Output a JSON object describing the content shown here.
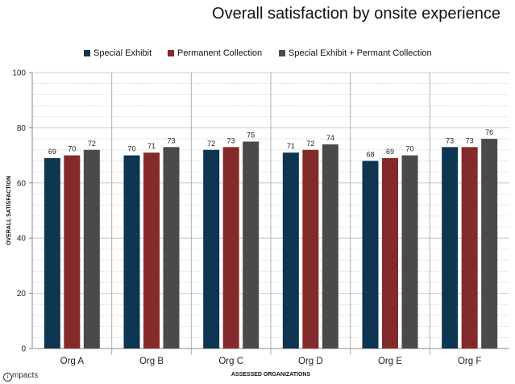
{
  "chart_data": {
    "type": "bar",
    "title": "Overall satisfaction by onsite experience",
    "xlabel": "ASSESSED ORGANIZATIONS",
    "ylabel": "OVERALL SATISFACTION",
    "ylim": [
      0,
      100
    ],
    "yticks": [
      "0",
      "20",
      "40",
      "60",
      "80",
      "100"
    ],
    "categories": [
      "Org A",
      "Org B",
      "Org C",
      "Org D",
      "Org E",
      "Org F"
    ],
    "series": [
      {
        "name": "Special Exhibit",
        "color": "#0e3552",
        "values": [
          69,
          70,
          72,
          71,
          68,
          73
        ]
      },
      {
        "name": "Permanent Collection",
        "color": "#852a2a",
        "values": [
          70,
          71,
          73,
          72,
          69,
          73
        ]
      },
      {
        "name": "Special Exhibit + Permant Collection",
        "color": "#4a4a4a",
        "values": [
          72,
          73,
          75,
          74,
          70,
          76
        ]
      }
    ],
    "legend_position": "top",
    "grid": true
  },
  "branding": {
    "logo_text": "mpacts",
    "logo_glyph": "i"
  }
}
